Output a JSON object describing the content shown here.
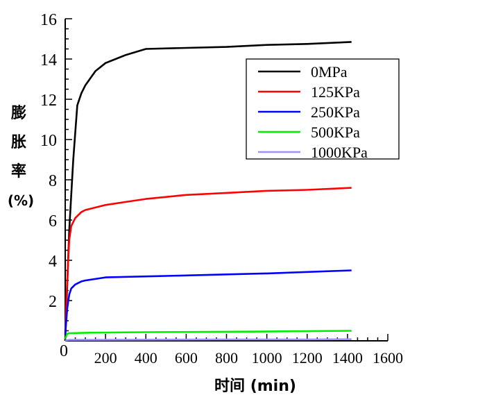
{
  "chart_data": {
    "type": "line",
    "title": "",
    "xlabel": "时间 (min)",
    "ylabel_lines": [
      "膨",
      "胀",
      "率",
      "(%)"
    ],
    "xlim": [
      0,
      1600
    ],
    "ylim": [
      0,
      16
    ],
    "x_ticks": [
      0,
      200,
      400,
      600,
      800,
      1000,
      1200,
      1400,
      1600
    ],
    "y_ticks": [
      2,
      4,
      6,
      8,
      10,
      12,
      14,
      16
    ],
    "y_zero_label": "0",
    "grid": false,
    "legend_position": "top-right",
    "series": [
      {
        "name": "0MPa",
        "color": "#000000",
        "x": [
          0,
          20,
          40,
          60,
          80,
          100,
          150,
          200,
          250,
          300,
          350,
          400,
          600,
          800,
          1000,
          1200,
          1420
        ],
        "y": [
          0,
          5.5,
          9.0,
          11.7,
          12.3,
          12.7,
          13.4,
          13.8,
          14.0,
          14.2,
          14.35,
          14.5,
          14.55,
          14.6,
          14.7,
          14.75,
          14.85
        ]
      },
      {
        "name": "125KPa",
        "color": "#ff0000",
        "x": [
          0,
          10,
          20,
          30,
          50,
          80,
          100,
          200,
          300,
          400,
          600,
          800,
          1000,
          1200,
          1420
        ],
        "y": [
          0.4,
          3.0,
          5.0,
          5.7,
          6.1,
          6.4,
          6.5,
          6.75,
          6.9,
          7.05,
          7.25,
          7.35,
          7.45,
          7.5,
          7.6
        ]
      },
      {
        "name": "250KPa",
        "color": "#0000ff",
        "x": [
          0,
          10,
          20,
          30,
          50,
          80,
          100,
          200,
          400,
          600,
          800,
          1000,
          1200,
          1420
        ],
        "y": [
          0.3,
          1.6,
          2.3,
          2.6,
          2.8,
          2.95,
          3.0,
          3.15,
          3.2,
          3.25,
          3.3,
          3.35,
          3.42,
          3.5
        ]
      },
      {
        "name": "500KPa",
        "color": "#00ee00",
        "x": [
          0,
          10,
          20,
          100,
          400,
          800,
          1200,
          1420
        ],
        "y": [
          0.1,
          0.35,
          0.38,
          0.4,
          0.43,
          0.45,
          0.48,
          0.5
        ]
      },
      {
        "name": "1000KPa",
        "color": "#9f8fff",
        "x": [
          0,
          20,
          400,
          800,
          1200,
          1420
        ],
        "y": [
          0.02,
          0.05,
          0.06,
          0.07,
          0.07,
          0.08
        ]
      }
    ]
  }
}
